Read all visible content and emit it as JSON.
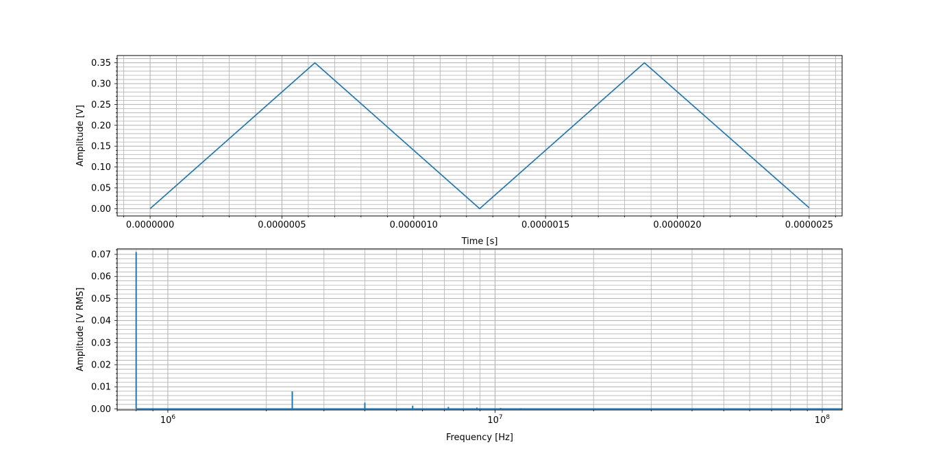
{
  "colors": {
    "line": "#1f77b4",
    "grid": "#b0b0b0",
    "axes": "#000000",
    "background": "#ffffff"
  },
  "chart_data": [
    {
      "type": "line",
      "xlabel": "Time [s]",
      "ylabel": "Amplitude [V]",
      "xlim": [
        -1.25e-07,
        2.625e-06
      ],
      "ylim": [
        -0.0175,
        0.3675
      ],
      "x_ticks": [
        0,
        5e-07,
        1e-06,
        1.5e-06,
        2e-06,
        2.5e-06
      ],
      "x_tick_labels": [
        "0.0000000",
        "0.0000005",
        "0.0000010",
        "0.0000015",
        "0.0000020",
        "0.0000025"
      ],
      "y_ticks": [
        0,
        0.05,
        0.1,
        0.15,
        0.2,
        0.25,
        0.3,
        0.35
      ],
      "y_tick_labels": [
        "0.00",
        "0.05",
        "0.10",
        "0.15",
        "0.20",
        "0.25",
        "0.30",
        "0.35"
      ],
      "grid": true,
      "minor_grid": true,
      "series": [
        {
          "x": [
            0,
            6.25e-07,
            1.25e-06,
            1.875e-06,
            2.5e-06
          ],
          "y": [
            0,
            0.35,
            0,
            0.35,
            0.002
          ]
        }
      ]
    },
    {
      "type": "line",
      "xscale": "log",
      "xlabel": "Frequency [Hz]",
      "ylabel": "Amplitude [V RMS]",
      "xlim": [
        700000,
        115000000
      ],
      "ylim": [
        -0.0005,
        0.0725
      ],
      "x_ticks": [
        1000000,
        10000000,
        100000000
      ],
      "x_tick_labels": [
        {
          "base": "10",
          "exp": "6"
        },
        {
          "base": "10",
          "exp": "7"
        },
        {
          "base": "10",
          "exp": "8"
        }
      ],
      "y_ticks": [
        0,
        0.01,
        0.02,
        0.03,
        0.04,
        0.05,
        0.06,
        0.07
      ],
      "y_tick_labels": [
        "0.00",
        "0.01",
        "0.02",
        "0.03",
        "0.04",
        "0.05",
        "0.06",
        "0.07"
      ],
      "grid": true,
      "minor_grid": true,
      "baseline_start_hz": 800000,
      "baseline_end_hz": 115000000,
      "series": [
        {
          "freq_hz": [
            800000,
            2400000,
            4000000,
            5600000,
            7200000,
            8800000,
            10400000,
            12000000,
            13600000,
            15200000,
            16800000,
            18400000
          ],
          "amplitude": [
            0.0711,
            0.0079,
            0.0028,
            0.00145,
            0.00088,
            0.00059,
            0.00042,
            0.00032,
            0.00025,
            0.0002,
            0.00016,
            0.00013
          ]
        }
      ]
    }
  ]
}
